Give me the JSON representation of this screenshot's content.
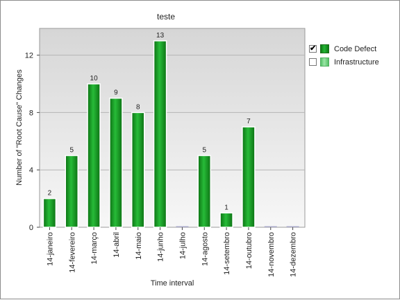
{
  "chart_data": {
    "type": "bar",
    "title": "teste",
    "xlabel": "Time interval",
    "ylabel": "Number of \"Root Cause\" Changes",
    "categories": [
      "14-janeiro",
      "14-fevereiro",
      "14-março",
      "14-abril",
      "14-maio",
      "14-junho",
      "14-julho",
      "14-agosto",
      "14-setembro",
      "14-outubro",
      "14-novembro",
      "14-dezembro"
    ],
    "series": [
      {
        "name": "Code Defect",
        "values": [
          2,
          5,
          10,
          9,
          8,
          13,
          0,
          5,
          1,
          7,
          0,
          0
        ],
        "color": "#1ea82c"
      },
      {
        "name": "Infrastructure",
        "values": [
          0,
          0,
          0,
          0,
          0,
          0,
          0,
          0,
          0,
          0,
          0,
          0
        ],
        "color": "#7fd98c"
      }
    ],
    "yticks": [
      0,
      4,
      8,
      12
    ],
    "ylim": [
      0,
      14
    ],
    "grid": true,
    "legend_position": "right"
  },
  "legend": {
    "items": [
      {
        "label": "Code Defect",
        "checked": true
      },
      {
        "label": "Infrastructure",
        "checked": false
      }
    ]
  }
}
